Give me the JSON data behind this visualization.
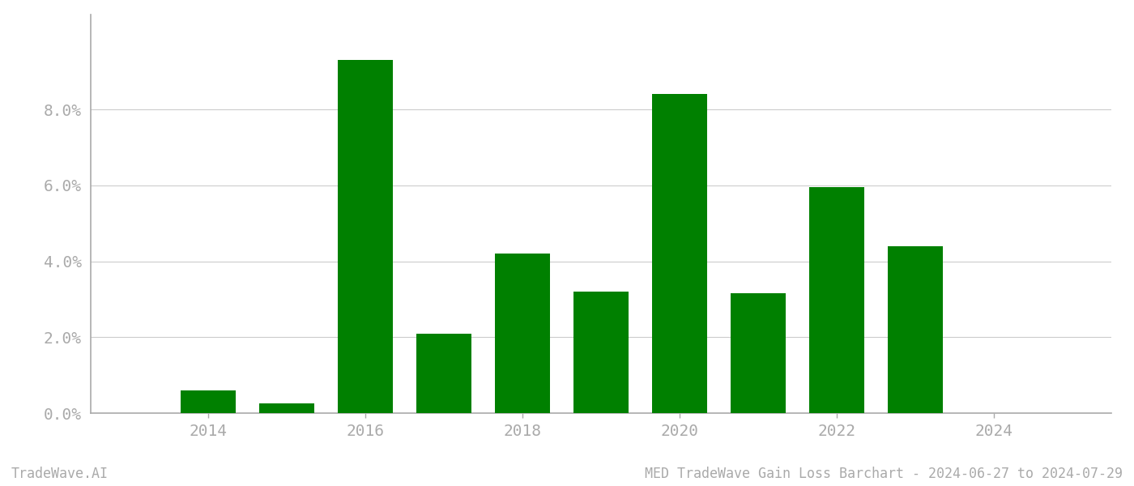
{
  "years": [
    2014,
    2015,
    2016,
    2017,
    2018,
    2019,
    2020,
    2021,
    2022,
    2023,
    2024
  ],
  "values": [
    0.006,
    0.0025,
    0.093,
    0.021,
    0.042,
    0.032,
    0.084,
    0.0315,
    0.0595,
    0.044,
    0.0
  ],
  "bar_color": "#008000",
  "background_color": "#ffffff",
  "ylim": [
    0,
    0.105
  ],
  "yticks": [
    0.0,
    0.02,
    0.04,
    0.06,
    0.08
  ],
  "ytick_labels": [
    "0.0%",
    "2.0%",
    "4.0%",
    "6.0%",
    "8.0%"
  ],
  "xtick_labels": [
    "2014",
    "2016",
    "2018",
    "2020",
    "2022",
    "2024"
  ],
  "xticks": [
    2014,
    2016,
    2018,
    2020,
    2022,
    2024
  ],
  "footer_left": "TradeWave.AI",
  "footer_right": "MED TradeWave Gain Loss Barchart - 2024-06-27 to 2024-07-29",
  "bar_width": 0.7,
  "grid_color": "#cccccc",
  "tick_color": "#aaaaaa",
  "spine_color": "#aaaaaa",
  "text_color": "#aaaaaa",
  "footer_fontsize": 12,
  "tick_fontsize": 14,
  "xlim_left": 2012.5,
  "xlim_right": 2025.5
}
